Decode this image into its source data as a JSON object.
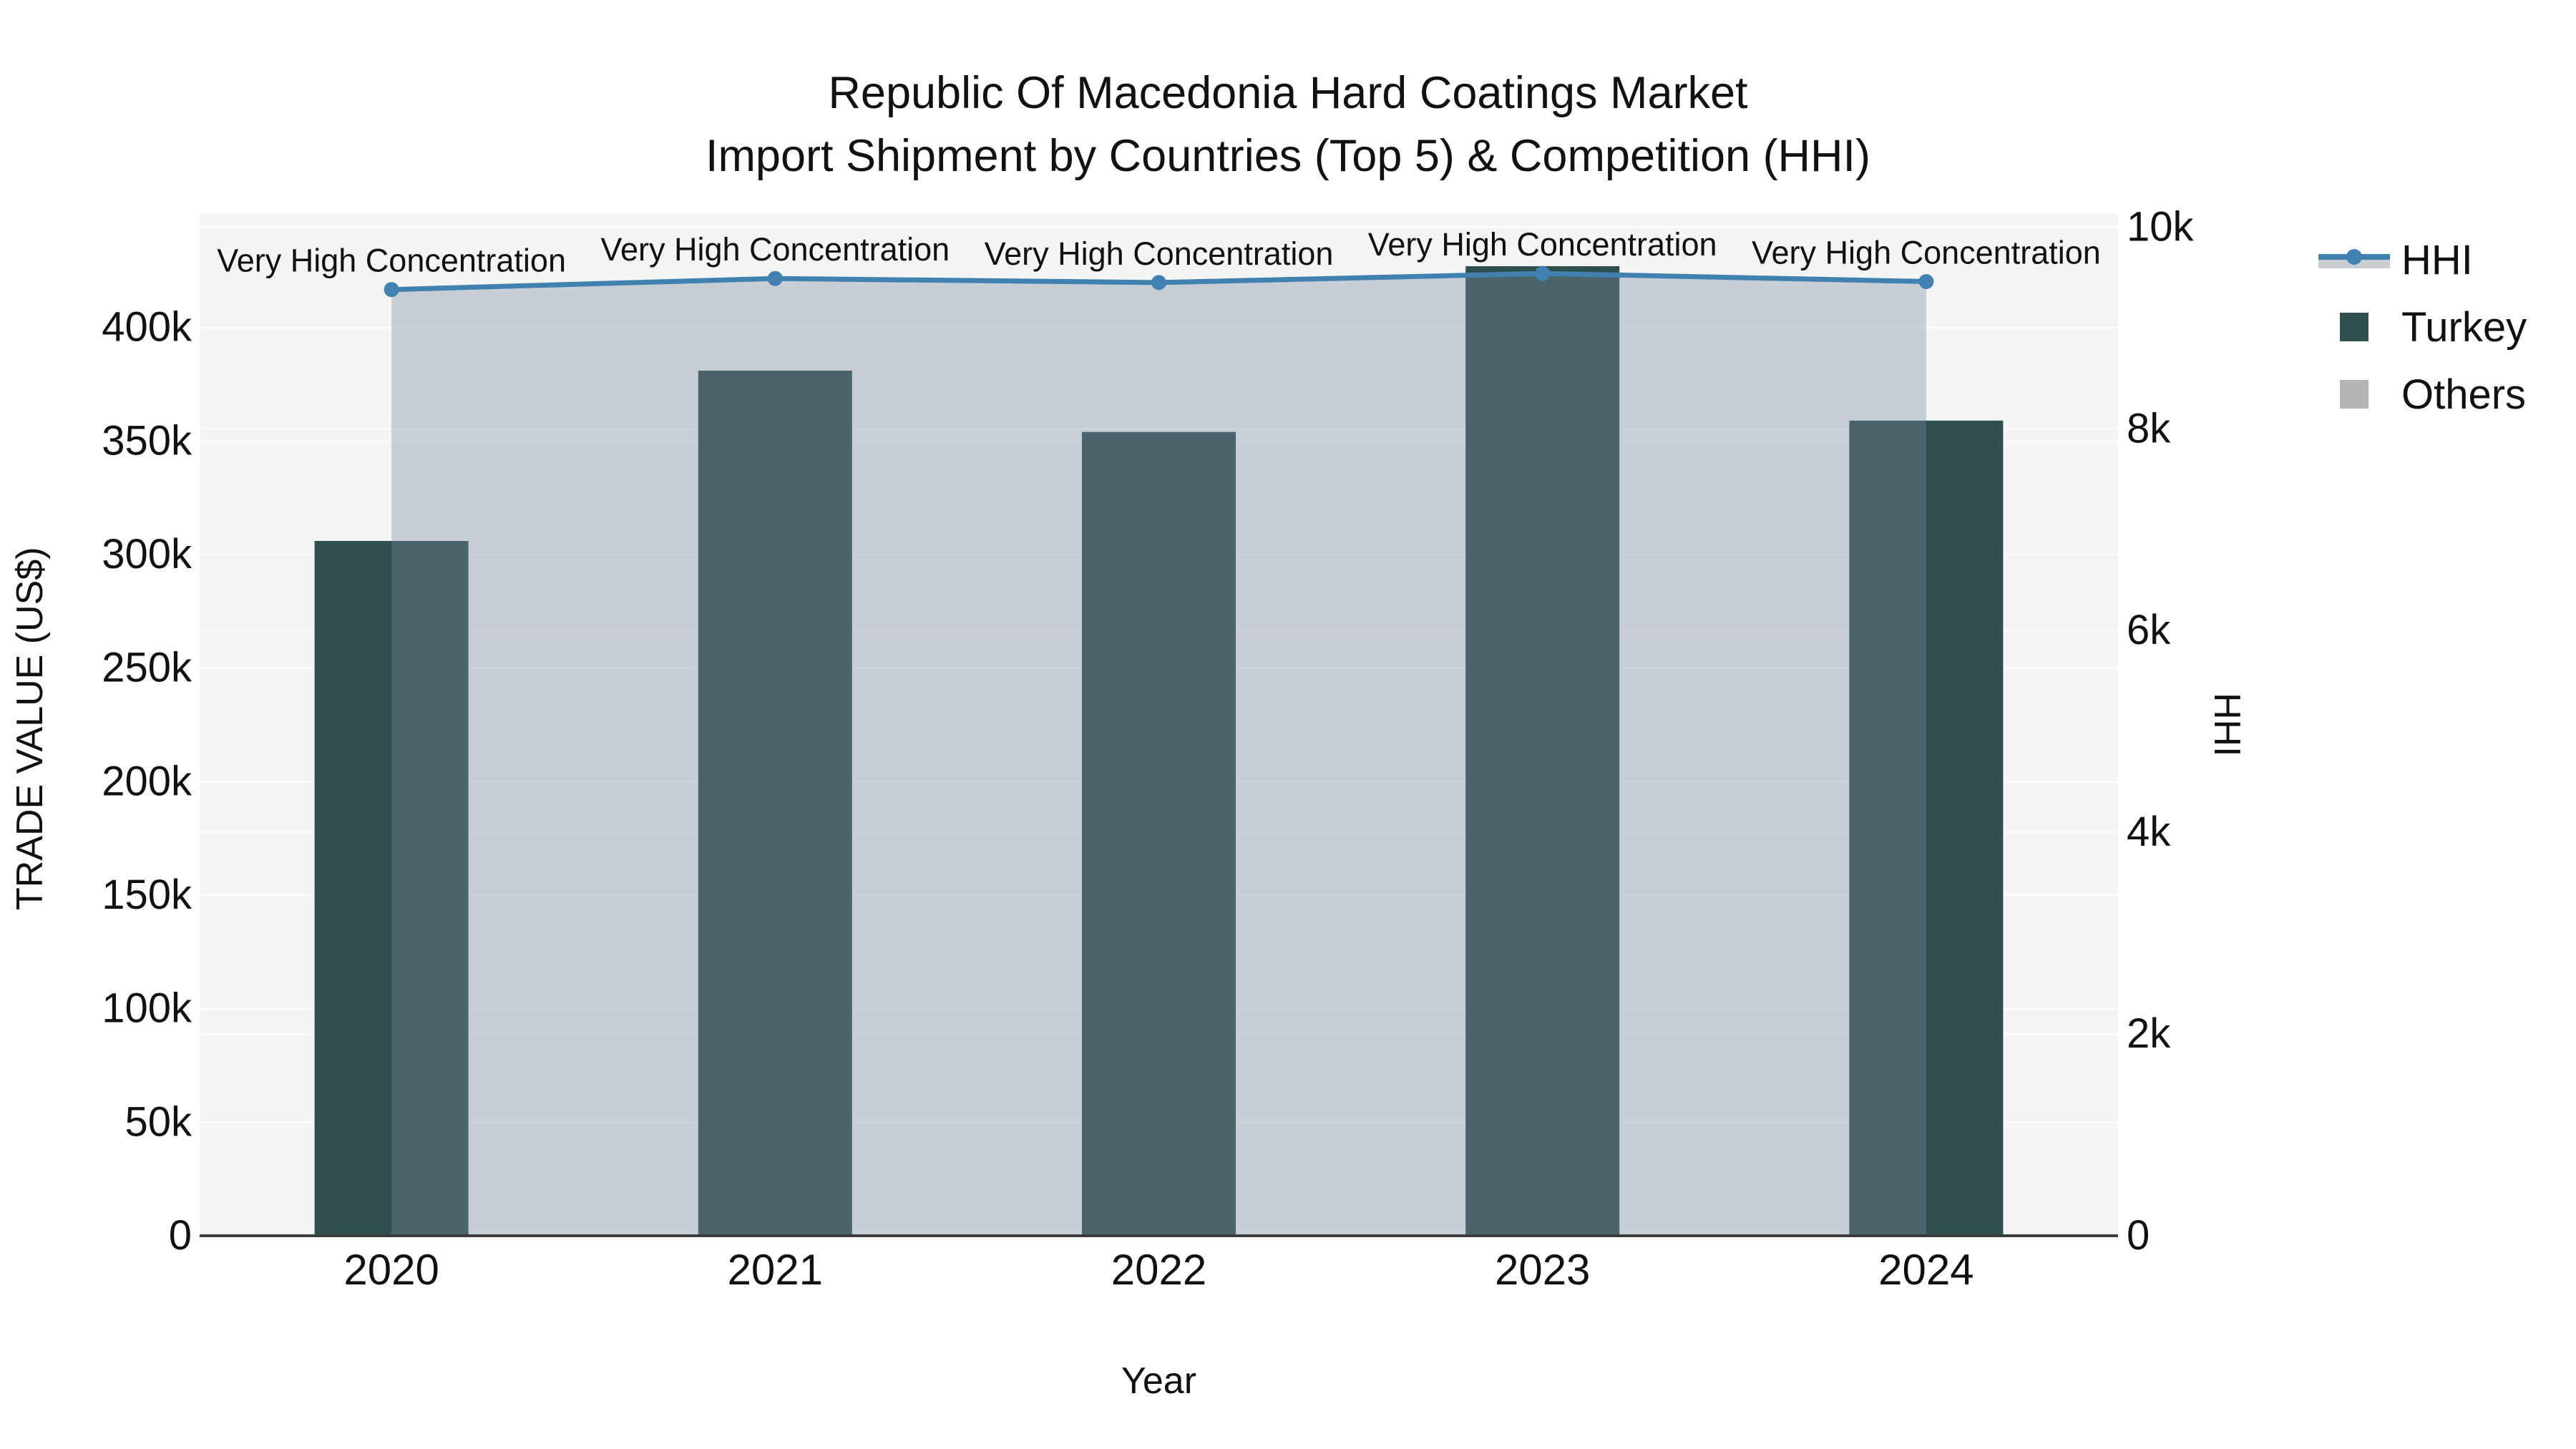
{
  "title": {
    "line1": "Republic Of Macedonia Hard Coatings Market",
    "line2": "Import Shipment by Countries (Top 5) & Competition (HHI)"
  },
  "chart_data": {
    "type": "bar+line",
    "categories": [
      "2020",
      "2021",
      "2022",
      "2023",
      "2024"
    ],
    "series": [
      {
        "name": "Turkey",
        "type": "bar",
        "axis": "left",
        "values": [
          306000,
          381000,
          354000,
          427000,
          359000
        ]
      },
      {
        "name": "HHI",
        "type": "line",
        "axis": "right",
        "values": [
          9380,
          9490,
          9450,
          9540,
          9460
        ],
        "fill": "tozero"
      }
    ],
    "annotations": [
      "Very High Concentration",
      "Very High Concentration",
      "Very High Concentration",
      "Very High Concentration",
      "Very High Concentration"
    ],
    "xlabel": "Year",
    "ylabel_left": "TRADE VALUE (US$)",
    "ylabel_right": "HHI",
    "ylim_left": [
      0,
      450000
    ],
    "ylim_right": [
      0,
      10130
    ],
    "yticks_left": {
      "values": [
        0,
        50000,
        100000,
        150000,
        200000,
        250000,
        300000,
        350000,
        400000
      ],
      "labels": [
        "0",
        "50k",
        "100k",
        "150k",
        "200k",
        "250k",
        "300k",
        "350k",
        "400k"
      ]
    },
    "yticks_right": {
      "values": [
        0,
        2000,
        4000,
        6000,
        8000,
        10000
      ],
      "labels": [
        "0",
        "2k",
        "4k",
        "6k",
        "8k",
        "10k"
      ]
    },
    "grid": true,
    "legend_position": "top-right-outside",
    "legend": [
      {
        "label": "HHI",
        "glyph": "line-with-fill"
      },
      {
        "label": "Turkey",
        "glyph": "square"
      },
      {
        "label": "Others",
        "glyph": "square"
      }
    ]
  },
  "colors": {
    "plot_bg": "#f3f4f4",
    "gridline": "#ffffff",
    "axis_line": "#3c3c3c",
    "text": "#111111",
    "turkey_bar": "#2f4f4f",
    "others_swatch": "#b3b3b3",
    "hhi_line": "#4181b0",
    "hhi_fill": "rgba(125,138,158,0.36)",
    "hhi_fill_legend": "#c9ced5"
  }
}
